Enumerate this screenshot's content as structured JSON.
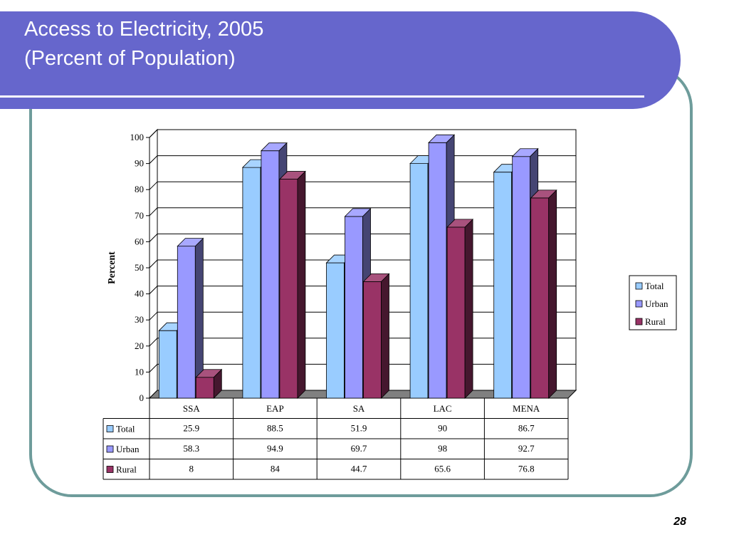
{
  "slide": {
    "title_line1": "Access to Electricity, 2005",
    "title_line2": "(Percent of Population)",
    "page_number": "28",
    "header_color": "#6666cc",
    "frame_color": "#6e9c9b"
  },
  "chart_data": {
    "type": "bar",
    "title": "Access to Electricity, 2005 (Percent of Population)",
    "ylabel": "Percent",
    "xlabel": "",
    "categories": [
      "SSA",
      "EAP",
      "SA",
      "LAC",
      "MENA"
    ],
    "yticks": [
      "0",
      "10",
      "20",
      "30",
      "40",
      "50",
      "60",
      "70",
      "80",
      "90",
      "100"
    ],
    "ylim": [
      0,
      100
    ],
    "grid": true,
    "legend_position": "right",
    "series": [
      {
        "name": "Total",
        "color": "#99ccff",
        "values": [
          25.9,
          88.5,
          51.9,
          90,
          86.7
        ],
        "labels": [
          "25.9",
          "88.5",
          "51.9",
          "90",
          "86.7"
        ]
      },
      {
        "name": "Urban",
        "color": "#9999ff",
        "values": [
          58.3,
          94.9,
          69.7,
          98,
          92.7
        ],
        "labels": [
          "58.3",
          "94.9",
          "69.7",
          "98",
          "92.7"
        ]
      },
      {
        "name": "Rural",
        "color": "#993366",
        "values": [
          8,
          84,
          44.7,
          65.6,
          76.8
        ],
        "labels": [
          "8",
          "84",
          "44.7",
          "65.6",
          "76.8"
        ]
      }
    ]
  }
}
